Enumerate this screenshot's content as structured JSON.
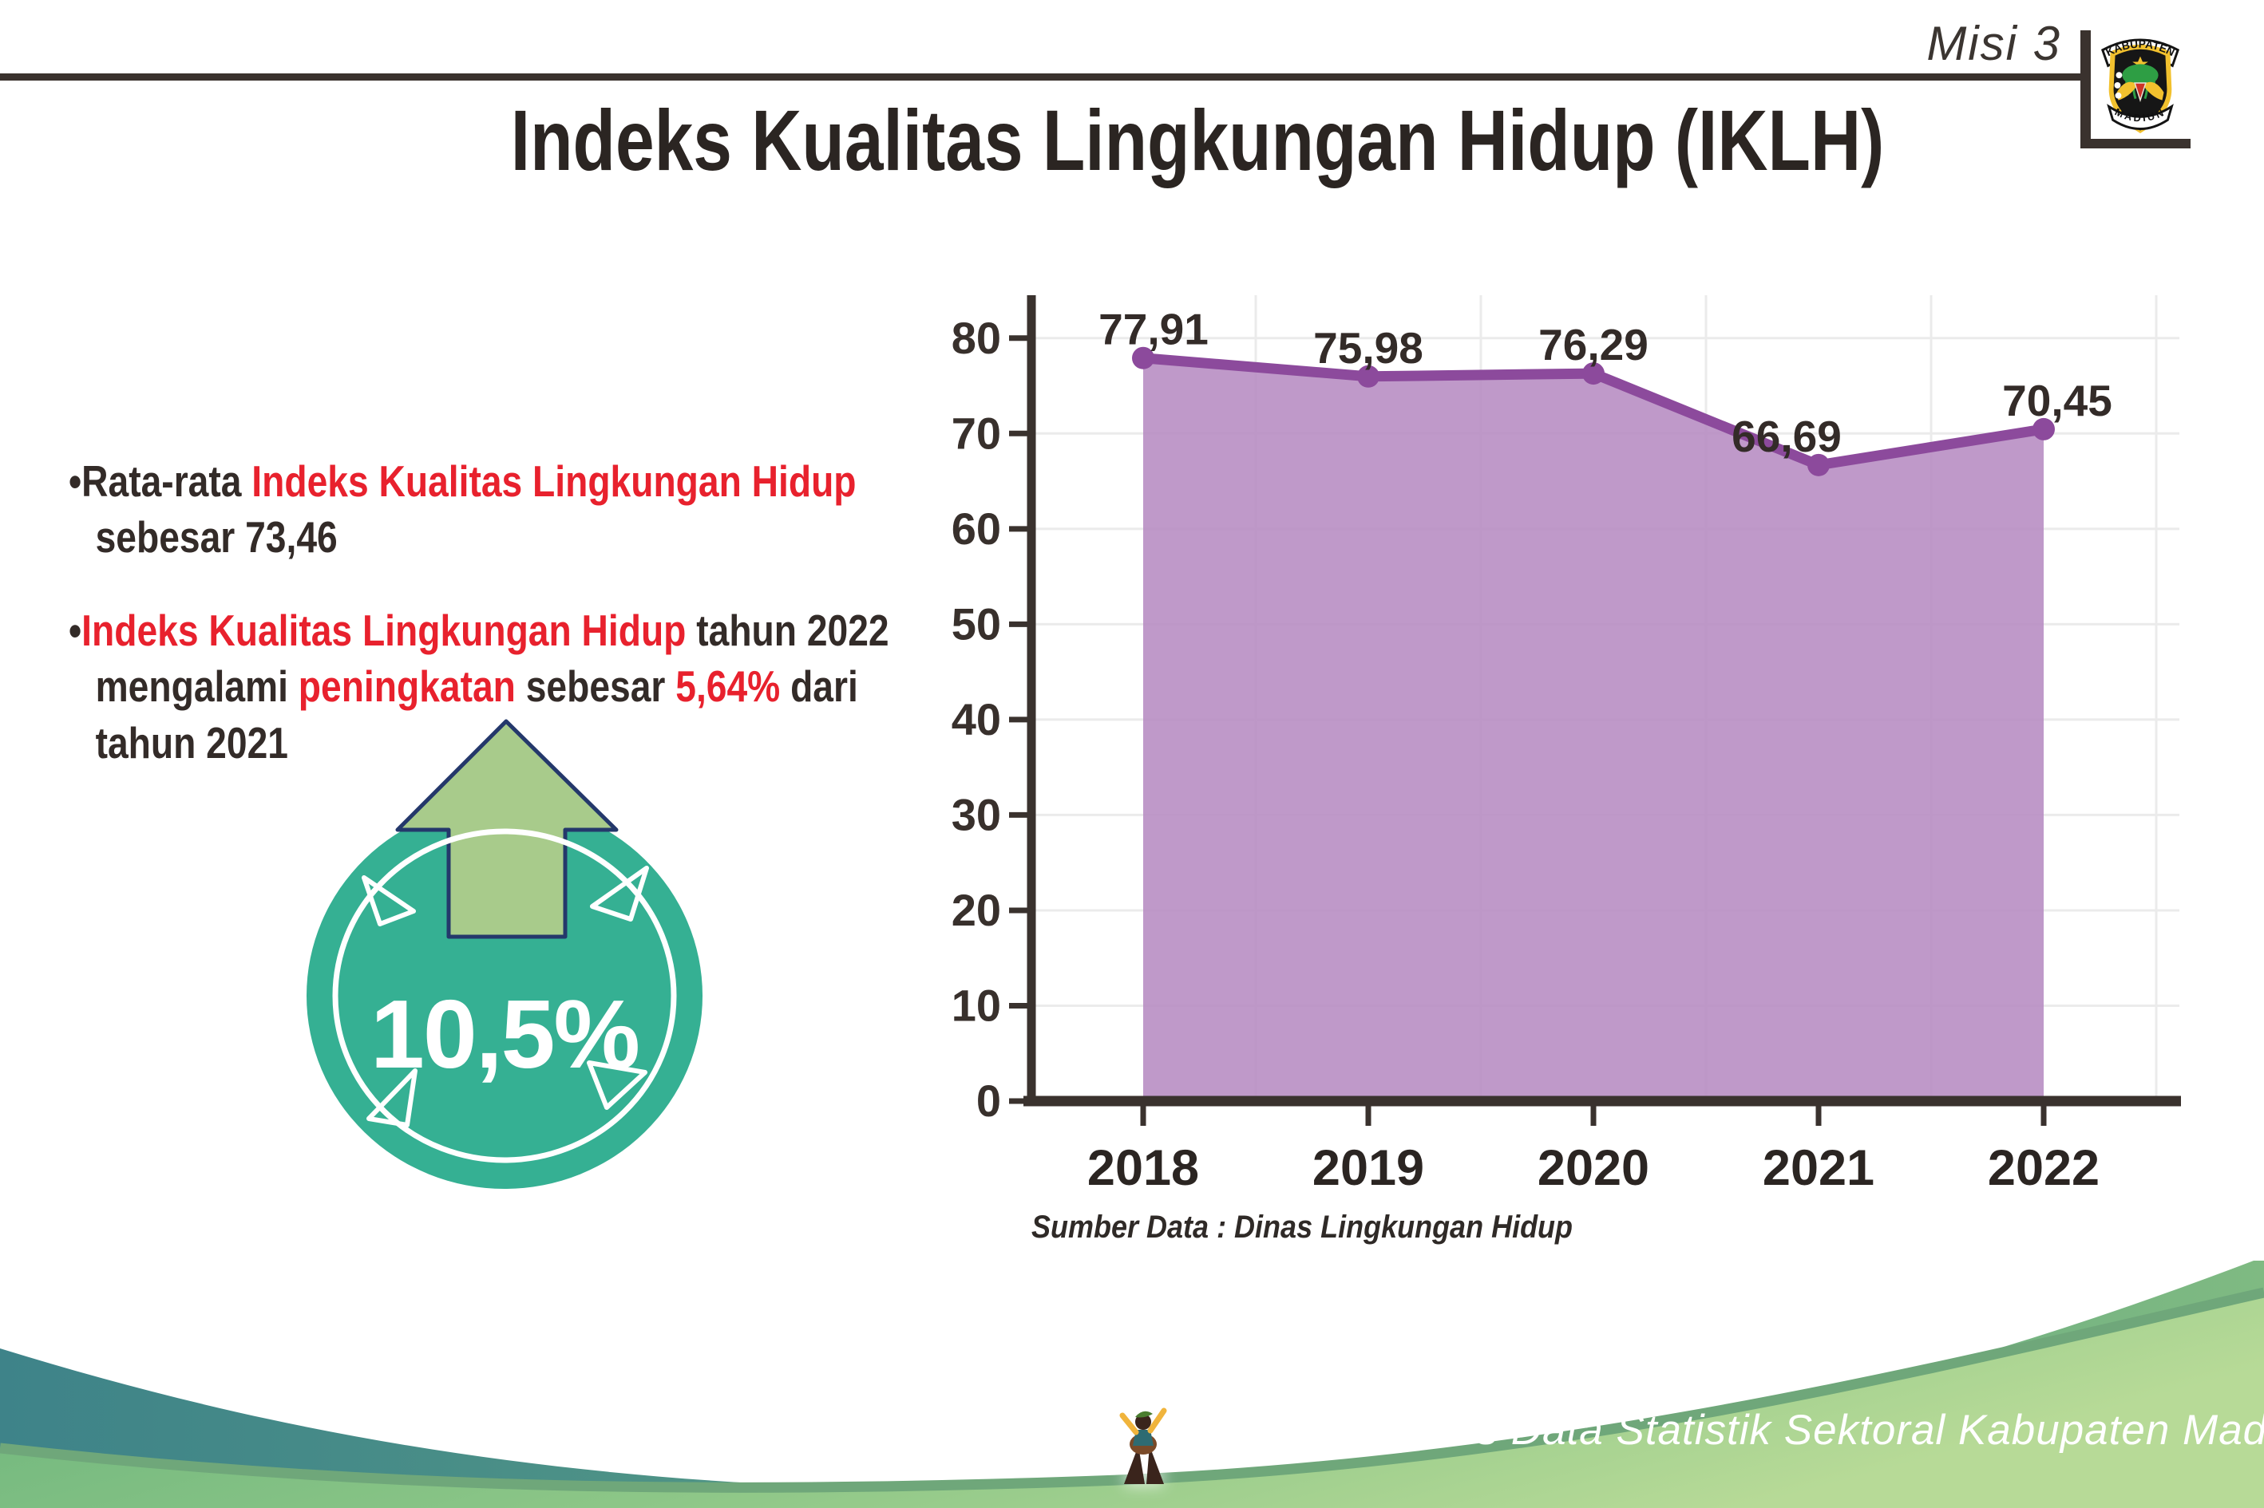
{
  "header": {
    "misi_label": "Misi 3",
    "title": "Indeks Kualitas Lingkungan Hidup (IKLH)",
    "logo": {
      "top_text": "KABUPATEN",
      "bottom_text": "MADIUN"
    }
  },
  "bullets": [
    {
      "lines": [
        [
          {
            "t": "•Rata-rata ",
            "c": "dark"
          },
          {
            "t": "Indeks Kualitas Lingkungan Hidup",
            "c": "red"
          }
        ],
        [
          {
            "t": "sebesar 73,46",
            "c": "dark"
          }
        ]
      ]
    },
    {
      "lines": [
        [
          {
            "t": "•",
            "c": "dark"
          },
          {
            "t": "Indeks Kualitas Lingkungan Hidup",
            "c": "red"
          },
          {
            "t": " tahun 2022",
            "c": "dark"
          }
        ],
        [
          {
            "t": "mengalami ",
            "c": "dark"
          },
          {
            "t": "peningkatan",
            "c": "red"
          },
          {
            "t": " sebesar ",
            "c": "dark"
          },
          {
            "t": "5,64%",
            "c": "red"
          },
          {
            "t": " dari",
            "c": "dark"
          }
        ],
        [
          {
            "t": "tahun 2021",
            "c": "dark"
          }
        ]
      ]
    }
  ],
  "badge": {
    "value": "10,5%",
    "circle_color": "#35b093",
    "arrow_color": "#a8cb8b",
    "arrow_outline": "#24386b"
  },
  "chart_data": {
    "type": "area",
    "categories": [
      "2018",
      "2019",
      "2020",
      "2021",
      "2022"
    ],
    "values": [
      77.91,
      75.98,
      76.29,
      66.69,
      70.45
    ],
    "point_labels": [
      "77,91",
      "75,98",
      "76,29",
      "66,69",
      "70,45"
    ],
    "label_dx": [
      13,
      0,
      0,
      -40,
      17
    ],
    "yticks": [
      0,
      10,
      20,
      30,
      40,
      50,
      60,
      70,
      80
    ],
    "ylim": [
      0,
      84
    ],
    "grid": true,
    "legend": "none",
    "line_color": "#8c4a9c",
    "fill_color": "#b68bc1",
    "axis_color": "#3a322e",
    "gridline_color": "#ebebeb",
    "source_note": "Sumber Data : Dinas Lingkungan Hidup"
  },
  "footer": {
    "credit": "Media Infografis Data Statistik Sektoral Kabupaten Madiun |"
  },
  "colors": {
    "text_dark": "#332b28",
    "accent_red": "#e8212d",
    "rule": "#3a322e",
    "teal_band_left": "#3e8389",
    "teal_band_right": "#7fba82",
    "hill_left": "#68b27b",
    "hill_right": "#b7da97",
    "hill_rim": "#6fa77a"
  }
}
